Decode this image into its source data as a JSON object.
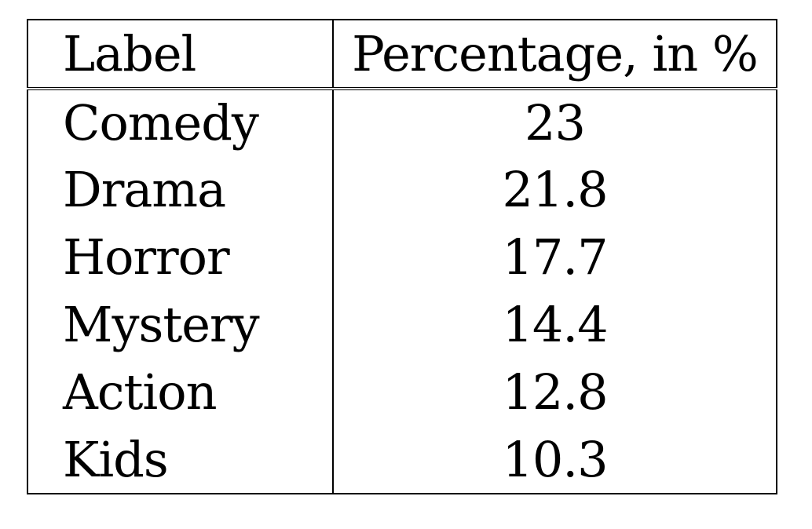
{
  "chart_data": {
    "type": "table",
    "columns": [
      "Label",
      "Percentage, in %"
    ],
    "rows": [
      {
        "label": "Comedy",
        "value": "23"
      },
      {
        "label": "Drama",
        "value": "21.8"
      },
      {
        "label": "Horror",
        "value": "17.7"
      },
      {
        "label": "Mystery",
        "value": "14.4"
      },
      {
        "label": "Action",
        "value": "12.8"
      },
      {
        "label": "Kids",
        "value": "10.3"
      }
    ]
  }
}
